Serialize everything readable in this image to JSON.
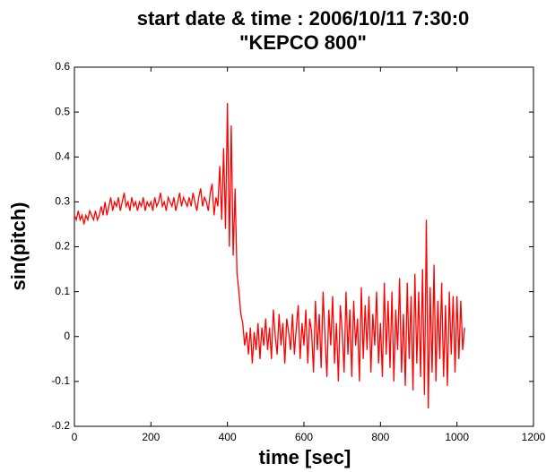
{
  "chart_data": {
    "type": "line",
    "title": "start date & time : 2006/10/11 7:30:0",
    "subtitle": "\"KEPCO 800\"",
    "xlabel": "time [sec]",
    "ylabel": "sin(pitch)",
    "xlim": [
      0,
      1200
    ],
    "xticks": [
      0,
      200,
      400,
      600,
      800,
      1000,
      1200
    ],
    "ylim": [
      -0.2,
      0.6
    ],
    "yticks": [
      -0.2,
      -0.1,
      0,
      0.1,
      0.2,
      0.3,
      0.4,
      0.5,
      0.6
    ],
    "grid": false,
    "x": [
      0,
      5,
      10,
      15,
      20,
      25,
      30,
      35,
      40,
      45,
      50,
      55,
      60,
      65,
      70,
      75,
      80,
      85,
      90,
      95,
      100,
      105,
      110,
      115,
      120,
      125,
      130,
      135,
      140,
      145,
      150,
      155,
      160,
      165,
      170,
      175,
      180,
      185,
      190,
      195,
      200,
      205,
      210,
      215,
      220,
      225,
      230,
      235,
      240,
      245,
      250,
      255,
      260,
      265,
      270,
      275,
      280,
      285,
      290,
      295,
      300,
      305,
      310,
      315,
      320,
      325,
      330,
      335,
      340,
      345,
      350,
      355,
      360,
      365,
      370,
      375,
      380,
      385,
      390,
      395,
      400,
      405,
      410,
      415,
      420,
      425,
      430,
      435,
      440,
      445,
      450,
      455,
      460,
      465,
      470,
      475,
      480,
      485,
      490,
      495,
      500,
      505,
      510,
      515,
      520,
      525,
      530,
      535,
      540,
      545,
      550,
      555,
      560,
      565,
      570,
      575,
      580,
      585,
      590,
      595,
      600,
      605,
      610,
      615,
      620,
      625,
      630,
      635,
      640,
      645,
      650,
      655,
      660,
      665,
      670,
      675,
      680,
      685,
      690,
      695,
      700,
      705,
      710,
      715,
      720,
      725,
      730,
      735,
      740,
      745,
      750,
      755,
      760,
      765,
      770,
      775,
      780,
      785,
      790,
      795,
      800,
      805,
      810,
      815,
      820,
      825,
      830,
      835,
      840,
      845,
      850,
      855,
      860,
      865,
      870,
      875,
      880,
      885,
      890,
      895,
      900,
      905,
      910,
      915,
      920,
      925,
      930,
      935,
      940,
      945,
      950,
      955,
      960,
      965,
      970,
      975,
      980,
      985,
      990,
      995,
      1000,
      1005,
      1010,
      1015,
      1020
    ],
    "series": [
      {
        "color": "#ff0000",
        "values": [
          0.27,
          0.26,
          0.28,
          0.26,
          0.27,
          0.25,
          0.27,
          0.26,
          0.28,
          0.27,
          0.26,
          0.28,
          0.26,
          0.27,
          0.29,
          0.27,
          0.3,
          0.27,
          0.29,
          0.31,
          0.28,
          0.3,
          0.29,
          0.31,
          0.28,
          0.3,
          0.32,
          0.29,
          0.3,
          0.28,
          0.31,
          0.29,
          0.3,
          0.28,
          0.3,
          0.29,
          0.31,
          0.28,
          0.3,
          0.29,
          0.3,
          0.28,
          0.31,
          0.29,
          0.3,
          0.32,
          0.29,
          0.3,
          0.28,
          0.31,
          0.3,
          0.29,
          0.31,
          0.28,
          0.3,
          0.32,
          0.29,
          0.31,
          0.3,
          0.29,
          0.31,
          0.29,
          0.32,
          0.3,
          0.28,
          0.31,
          0.33,
          0.29,
          0.31,
          0.3,
          0.28,
          0.32,
          0.34,
          0.27,
          0.31,
          0.29,
          0.38,
          0.26,
          0.42,
          0.24,
          0.52,
          0.2,
          0.47,
          0.18,
          0.33,
          0.14,
          0.1,
          0.05,
          0.03,
          -0.02,
          0.01,
          -0.04,
          0.02,
          -0.06,
          0.01,
          -0.03,
          0.03,
          -0.05,
          0.02,
          -0.02,
          0.04,
          -0.03,
          0.02,
          -0.05,
          0.06,
          0.0,
          -0.04,
          0.05,
          -0.02,
          0.03,
          -0.06,
          0.04,
          0.01,
          -0.03,
          0.05,
          -0.04,
          0.02,
          0.07,
          -0.05,
          0.03,
          -0.02,
          0.06,
          -0.06,
          0.04,
          0.01,
          -0.08,
          0.08,
          -0.03,
          0.05,
          -0.07,
          0.1,
          0.0,
          -0.09,
          0.06,
          -0.02,
          0.09,
          -0.06,
          0.03,
          -0.1,
          0.07,
          0.01,
          -0.08,
          0.1,
          -0.04,
          0.06,
          -0.09,
          0.08,
          -0.02,
          0.04,
          -0.1,
          0.11,
          -0.05,
          0.07,
          -0.03,
          0.09,
          -0.08,
          0.05,
          -0.02,
          0.1,
          -0.06,
          0.03,
          -0.09,
          0.12,
          -0.04,
          0.08,
          -0.07,
          0.1,
          -0.1,
          0.06,
          -0.03,
          0.13,
          -0.08,
          0.05,
          -0.11,
          0.12,
          -0.05,
          0.09,
          -0.12,
          0.14,
          -0.06,
          0.1,
          -0.09,
          0.15,
          -0.13,
          0.26,
          -0.16,
          0.11,
          -0.08,
          0.16,
          -0.1,
          0.08,
          -0.05,
          0.12,
          -0.09,
          0.07,
          -0.11,
          0.1,
          -0.04,
          0.09,
          -0.08,
          0.09,
          -0.05,
          0.08,
          -0.03,
          0.02
        ]
      }
    ]
  }
}
